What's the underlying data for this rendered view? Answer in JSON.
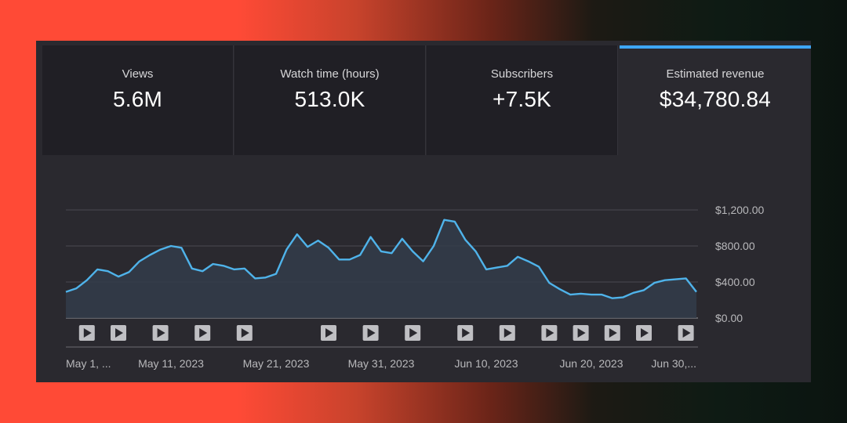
{
  "metrics": [
    {
      "label": "Views",
      "value": "5.6M"
    },
    {
      "label": "Watch time (hours)",
      "value": "513.0K"
    },
    {
      "label": "Subscribers",
      "value": "+7.5K"
    },
    {
      "label": "Estimated revenue",
      "value": "$34,780.84",
      "active": true
    }
  ],
  "colors": {
    "accent": "#3ea6ff",
    "line": "#4fb3ea"
  },
  "chart_data": {
    "type": "area",
    "title": "",
    "xlabel": "",
    "ylabel": "",
    "ylim": [
      0,
      1200
    ],
    "y_ticks": [
      "$1,200.00",
      "$800.00",
      "$400.00",
      "$0.00"
    ],
    "x_ticks": [
      "May 1, ...",
      "May 11, 2023",
      "May 21, 2023",
      "May 31, 2023",
      "Jun 10, 2023",
      "Jun 20, 2023",
      "Jun 30,..."
    ],
    "grid": true,
    "series": [
      {
        "x": [
          "2023-05-01",
          "2023-05-02",
          "2023-05-03",
          "2023-05-04",
          "2023-05-05",
          "2023-05-06",
          "2023-05-07",
          "2023-05-08",
          "2023-05-09",
          "2023-05-10",
          "2023-05-11",
          "2023-05-12",
          "2023-05-13",
          "2023-05-14",
          "2023-05-15",
          "2023-05-16",
          "2023-05-17",
          "2023-05-18",
          "2023-05-19",
          "2023-05-20",
          "2023-05-21",
          "2023-05-22",
          "2023-05-23",
          "2023-05-24",
          "2023-05-25",
          "2023-05-26",
          "2023-05-27",
          "2023-05-28",
          "2023-05-29",
          "2023-05-30",
          "2023-05-31",
          "2023-06-01",
          "2023-06-02",
          "2023-06-03",
          "2023-06-04",
          "2023-06-05",
          "2023-06-06",
          "2023-06-07",
          "2023-06-08",
          "2023-06-09",
          "2023-06-10",
          "2023-06-11",
          "2023-06-12",
          "2023-06-13",
          "2023-06-14",
          "2023-06-15",
          "2023-06-16",
          "2023-06-17",
          "2023-06-18",
          "2023-06-19",
          "2023-06-20",
          "2023-06-21",
          "2023-06-22",
          "2023-06-23",
          "2023-06-24",
          "2023-06-25",
          "2023-06-26",
          "2023-06-27",
          "2023-06-28",
          "2023-06-29",
          "2023-06-30"
        ],
        "values": [
          290,
          330,
          420,
          540,
          520,
          460,
          510,
          630,
          700,
          760,
          800,
          780,
          550,
          520,
          600,
          580,
          540,
          550,
          440,
          450,
          490,
          760,
          930,
          790,
          860,
          780,
          650,
          650,
          700,
          900,
          740,
          720,
          880,
          740,
          630,
          800,
          1090,
          1070,
          870,
          740,
          540,
          560,
          580,
          680,
          630,
          570,
          390,
          320,
          260,
          270,
          260,
          260,
          220,
          230,
          280,
          310,
          390,
          420,
          430,
          440,
          290
        ]
      }
    ],
    "video_markers": [
      "2023-05-03",
      "2023-05-06",
      "2023-05-10",
      "2023-05-14",
      "2023-05-18",
      "2023-05-26",
      "2023-05-30",
      "2023-06-03",
      "2023-06-08",
      "2023-06-12",
      "2023-06-16",
      "2023-06-19",
      "2023-06-22",
      "2023-06-25",
      "2023-06-29"
    ]
  }
}
